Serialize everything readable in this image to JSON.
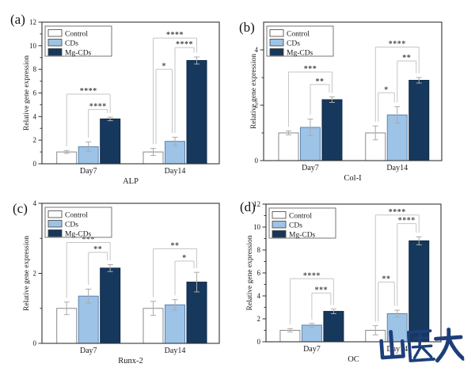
{
  "watermark": {
    "text": "山医大",
    "color": "#1D3E7A"
  },
  "legend": {
    "items": [
      "Control",
      "CDs",
      "Mg-CDs"
    ]
  },
  "palette": {
    "control_fill": "#FFFFFF",
    "control_stroke": "#8A8A8A",
    "cds_fill": "#9DC3E6",
    "cds_stroke": "#5B84AE",
    "mgcds_fill": "#16385C",
    "mgcds_stroke": "#0F2A47",
    "error_bar": "#ABABAB",
    "bracket": "#C6C6C6",
    "asterisk": "#4A4A4A",
    "axis": "#333333",
    "legend_border": "#555555"
  },
  "chart_data": [
    {
      "type": "bar",
      "panel_label": "(a)",
      "xlabel": "ALP",
      "ylabel": "Relative gene expression",
      "ylim": [
        0,
        12
      ],
      "yticks": [
        0,
        2,
        4,
        6,
        8,
        10,
        12
      ],
      "minor_ticks": [
        1,
        3,
        5,
        7,
        9,
        11
      ],
      "categories": [
        "Day7",
        "Day14"
      ],
      "legend_position": "top-left",
      "grid": false,
      "series": [
        {
          "name": "Control",
          "values": [
            1.0,
            1.0
          ],
          "errors": [
            0.12,
            0.3
          ]
        },
        {
          "name": "CDs",
          "values": [
            1.45,
            1.9
          ],
          "errors": [
            0.4,
            0.35
          ]
        },
        {
          "name": "Mg-CDs",
          "values": [
            3.8,
            8.75
          ],
          "errors": [
            0.15,
            0.3
          ]
        }
      ],
      "significance": [
        {
          "category": 0,
          "from": 1,
          "to": 2,
          "label": "****",
          "y": 4.6
        },
        {
          "category": 0,
          "from": 0,
          "to": 2,
          "label": "****",
          "y": 5.9
        },
        {
          "category": 1,
          "from": 0,
          "to": 1,
          "label": "*",
          "y": 8.0
        },
        {
          "category": 1,
          "from": 1,
          "to": 2,
          "label": "****",
          "y": 9.85
        },
        {
          "category": 1,
          "from": 0,
          "to": 2,
          "label": "****",
          "y": 10.65
        }
      ]
    },
    {
      "type": "bar",
      "panel_label": "(b)",
      "xlabel": "Col-I",
      "ylabel": "Relative gene expression",
      "ylim": [
        0,
        5
      ],
      "yticks": [
        0,
        2,
        4
      ],
      "minor_ticks": [
        1,
        3
      ],
      "categories": [
        "Day7",
        "Day14"
      ],
      "legend_position": "top-left",
      "grid": false,
      "series": [
        {
          "name": "Control",
          "values": [
            1.0,
            1.0
          ],
          "errors": [
            0.07,
            0.25
          ]
        },
        {
          "name": "CDs",
          "values": [
            1.2,
            1.65
          ],
          "errors": [
            0.3,
            0.3
          ]
        },
        {
          "name": "Mg-CDs",
          "values": [
            2.2,
            2.9
          ],
          "errors": [
            0.1,
            0.1
          ]
        }
      ],
      "significance": [
        {
          "category": 0,
          "from": 1,
          "to": 2,
          "label": "**",
          "y": 2.75
        },
        {
          "category": 0,
          "from": 0,
          "to": 2,
          "label": "***",
          "y": 3.2
        },
        {
          "category": 1,
          "from": 0,
          "to": 1,
          "label": "*",
          "y": 2.45
        },
        {
          "category": 1,
          "from": 1,
          "to": 2,
          "label": "**",
          "y": 3.6
        },
        {
          "category": 1,
          "from": 0,
          "to": 2,
          "label": "****",
          "y": 4.1
        }
      ]
    },
    {
      "type": "bar",
      "panel_label": "(c)",
      "xlabel": "Runx-2",
      "ylabel": "Relative gene expression",
      "ylim": [
        0,
        4
      ],
      "yticks": [
        0,
        2,
        4
      ],
      "minor_ticks": [
        1,
        3
      ],
      "categories": [
        "Day7",
        "Day14"
      ],
      "legend_position": "top-left",
      "grid": false,
      "series": [
        {
          "name": "Control",
          "values": [
            1.0,
            1.0
          ],
          "errors": [
            0.18,
            0.2
          ]
        },
        {
          "name": "CDs",
          "values": [
            1.35,
            1.1
          ],
          "errors": [
            0.2,
            0.15
          ]
        },
        {
          "name": "Mg-CDs",
          "values": [
            2.15,
            1.75
          ],
          "errors": [
            0.1,
            0.28
          ]
        }
      ],
      "significance": [
        {
          "category": 0,
          "from": 1,
          "to": 2,
          "label": "**",
          "y": 2.6
        },
        {
          "category": 0,
          "from": 0,
          "to": 2,
          "label": "***",
          "y": 2.88
        },
        {
          "category": 1,
          "from": 1,
          "to": 2,
          "label": "*",
          "y": 2.35
        },
        {
          "category": 1,
          "from": 0,
          "to": 2,
          "label": "**",
          "y": 2.7
        }
      ]
    },
    {
      "type": "bar",
      "panel_label": "(d)",
      "xlabel": "OC",
      "ylabel": "Relative gene expression",
      "ylim": [
        0,
        12
      ],
      "yticks": [
        0,
        2,
        4,
        6,
        8,
        10,
        12
      ],
      "minor_ticks": [
        1,
        3,
        5,
        7,
        9,
        11
      ],
      "categories": [
        "Day7",
        "Day14"
      ],
      "legend_position": "top-left",
      "grid": false,
      "series": [
        {
          "name": "Control",
          "values": [
            1.0,
            1.0
          ],
          "errors": [
            0.15,
            0.4
          ]
        },
        {
          "name": "CDs",
          "values": [
            1.45,
            2.45
          ],
          "errors": [
            0.15,
            0.3
          ]
        },
        {
          "name": "Mg-CDs",
          "values": [
            2.65,
            8.8
          ],
          "errors": [
            0.2,
            0.35
          ]
        }
      ],
      "significance": [
        {
          "category": 0,
          "from": 1,
          "to": 2,
          "label": "***",
          "y": 4.25
        },
        {
          "category": 0,
          "from": 0,
          "to": 2,
          "label": "****",
          "y": 5.5
        },
        {
          "category": 1,
          "from": 0,
          "to": 1,
          "label": "**",
          "y": 5.2
        },
        {
          "category": 1,
          "from": 1,
          "to": 2,
          "label": "****",
          "y": 10.3
        },
        {
          "category": 1,
          "from": 0,
          "to": 2,
          "label": "****",
          "y": 11.05
        }
      ]
    }
  ]
}
